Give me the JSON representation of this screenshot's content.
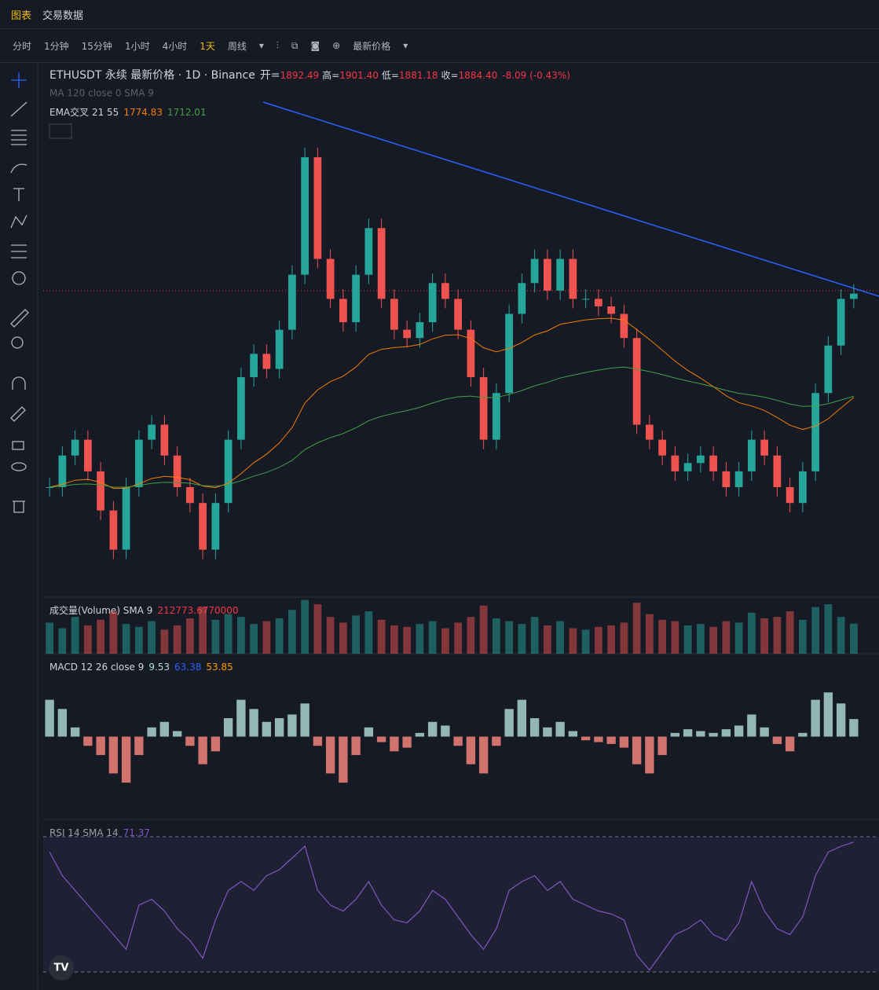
{
  "tabs": [
    "图表",
    "交易数据"
  ],
  "toolbar": [
    "分时",
    "1分钟",
    "15分钟",
    "1小时",
    "4小时",
    "1天",
    "周线",
    "最新价格"
  ],
  "legend": {
    "symbol": "ETHUSDT 永续 最新价格 · 1D · Binance",
    "open_label": "开=",
    "open": "1892.49",
    "high_label": "高=",
    "high": "1901.40",
    "low_label": "低=",
    "low": "1881.18",
    "close_label": "收=",
    "close": "1884.40",
    "change": "-8.09 (-0.43%)",
    "ma": "MA 120 close 0 SMA 9",
    "ema": "EMA交叉 21 55",
    "ema_fast": "1774.83",
    "ema_slow": "1712.01"
  },
  "volume_legend": {
    "name": "成交量(Volume) SMA 9",
    "value": "212773.6770000"
  },
  "macd_legend": {
    "name": "MACD 12 26 close 9",
    "hist": "9.53",
    "macd": "63.38",
    "signal": "53.85"
  },
  "rsi_legend": {
    "name": "RSI 14 SMA 14",
    "value": "71.37"
  },
  "price": {
    "type": "candlestick",
    "ylim": [
      1520,
      2100
    ],
    "closes": [
      1652,
      1690,
      1709,
      1671,
      1624,
      1577,
      1652,
      1709,
      1727,
      1690,
      1652,
      1633,
      1577,
      1633,
      1709,
      1784,
      1812,
      1794,
      1841,
      1907,
      2048,
      1926,
      1878,
      1850,
      1907,
      1963,
      1878,
      1841,
      1831,
      1850,
      1897,
      1878,
      1841,
      1784,
      1709,
      1765,
      1860,
      1897,
      1926,
      1888,
      1926,
      1878,
      1878,
      1869,
      1860,
      1831,
      1727,
      1709,
      1690,
      1671,
      1681,
      1690,
      1671,
      1652,
      1671,
      1709,
      1690,
      1652,
      1633,
      1671,
      1765,
      1822,
      1878,
      1884.4
    ]
  },
  "volume": {
    "ylim": [
      0,
      400000
    ],
    "values": [
      220000,
      180000,
      260000,
      200000,
      240000,
      300000,
      210000,
      190000,
      230000,
      170000,
      200000,
      250000,
      330000,
      240000,
      280000,
      260000,
      210000,
      230000,
      250000,
      310000,
      380000,
      350000,
      260000,
      220000,
      270000,
      300000,
      240000,
      200000,
      190000,
      210000,
      230000,
      180000,
      220000,
      260000,
      340000,
      250000,
      230000,
      210000,
      260000,
      200000,
      230000,
      180000,
      170000,
      190000,
      200000,
      220000,
      360000,
      280000,
      240000,
      230000,
      200000,
      210000,
      190000,
      230000,
      220000,
      290000,
      250000,
      260000,
      300000,
      240000,
      330000,
      350000,
      260000,
      212774
    ]
  },
  "macd": {
    "ylim": [
      -45,
      45
    ],
    "values": [
      20,
      15,
      5,
      -5,
      -10,
      -20,
      -25,
      -10,
      5,
      8,
      3,
      -5,
      -15,
      -8,
      10,
      20,
      15,
      8,
      10,
      12,
      18,
      -5,
      -20,
      -25,
      -10,
      5,
      -3,
      -8,
      -6,
      2,
      8,
      6,
      -5,
      -15,
      -20,
      -5,
      15,
      20,
      10,
      5,
      8,
      3,
      -2,
      -3,
      -4,
      -6,
      -15,
      -20,
      -10,
      2,
      4,
      3,
      2,
      4,
      6,
      12,
      5,
      -4,
      -8,
      2,
      20,
      24,
      18,
      9.53
    ]
  },
  "rsi": {
    "ylim": [
      22,
      78
    ],
    "values": [
      68,
      60,
      55,
      50,
      45,
      40,
      35,
      50,
      52,
      48,
      42,
      38,
      32,
      45,
      55,
      58,
      55,
      60,
      62,
      66,
      70,
      55,
      50,
      48,
      52,
      58,
      50,
      45,
      44,
      48,
      55,
      52,
      46,
      40,
      35,
      42,
      55,
      58,
      60,
      55,
      58,
      52,
      50,
      48,
      47,
      45,
      33,
      28,
      34,
      40,
      42,
      45,
      40,
      38,
      44,
      58,
      48,
      42,
      40,
      46,
      60,
      68,
      70,
      71.37
    ]
  }
}
